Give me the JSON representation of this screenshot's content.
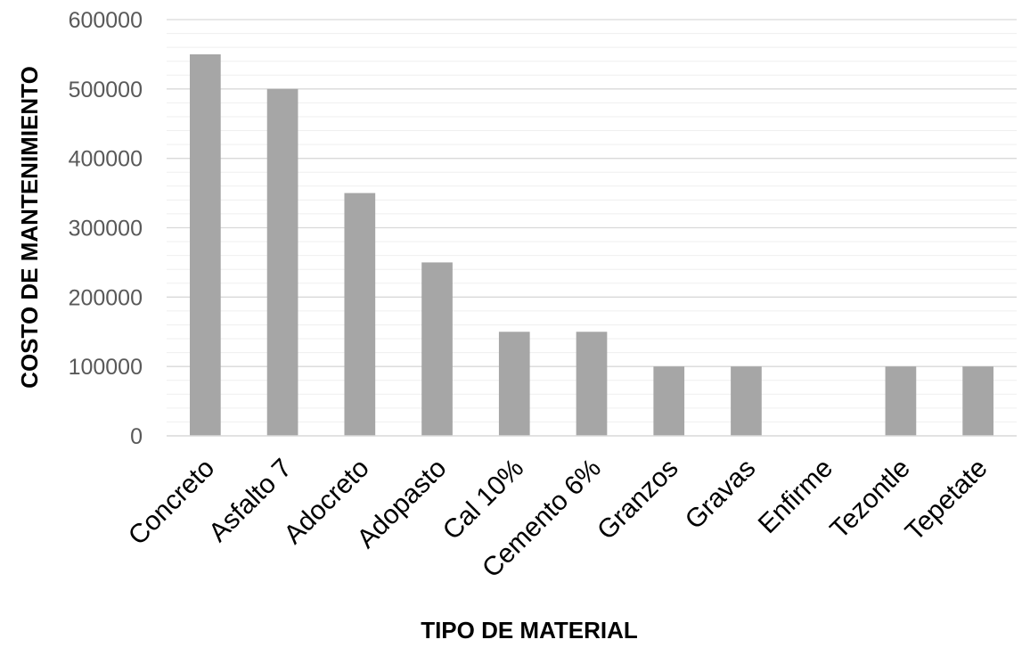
{
  "chart_data": {
    "type": "bar",
    "title": "",
    "xlabel": "TIPO DE MATERIAL",
    "ylabel": "COSTO DE MANTENIMIENTO",
    "categories": [
      "Concreto",
      "Asfalto 7",
      "Adocreto",
      "Adopasto",
      "Cal 10%",
      "Cemento 6%",
      "Granzos",
      "Gravas",
      "Enfirme",
      "Tezontle",
      "Tepetate"
    ],
    "values": [
      550000,
      500000,
      350000,
      250000,
      150000,
      150000,
      100000,
      100000,
      0,
      100000,
      100000
    ],
    "ylim": [
      0,
      600000
    ],
    "yticks": [
      "0",
      "100000",
      "200000",
      "300000",
      "400000",
      "500000",
      "600000"
    ],
    "grid": "major and minor horizontal",
    "legend": "none",
    "bar_color": "#a6a6a6",
    "grid_color": "#d9d9d9",
    "minor_grid_color": "#efefef"
  }
}
